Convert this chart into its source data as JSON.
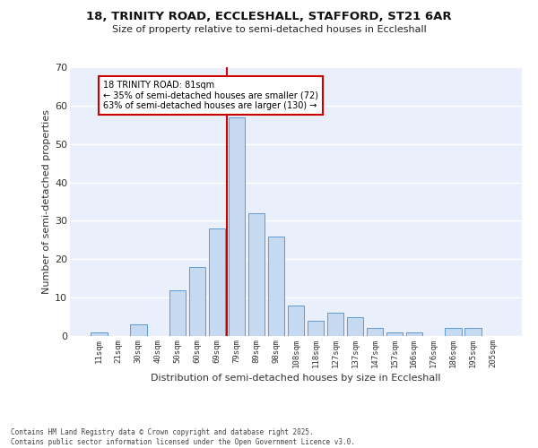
{
  "title1": "18, TRINITY ROAD, ECCLESHALL, STAFFORD, ST21 6AR",
  "title2": "Size of property relative to semi-detached houses in Eccleshall",
  "xlabel": "Distribution of semi-detached houses by size in Eccleshall",
  "ylabel": "Number of semi-detached properties",
  "bar_labels": [
    "11sqm",
    "21sqm",
    "30sqm",
    "40sqm",
    "50sqm",
    "60sqm",
    "69sqm",
    "79sqm",
    "89sqm",
    "98sqm",
    "108sqm",
    "118sqm",
    "127sqm",
    "137sqm",
    "147sqm",
    "157sqm",
    "166sqm",
    "176sqm",
    "186sqm",
    "195sqm",
    "205sqm"
  ],
  "bar_values": [
    1,
    0,
    3,
    0,
    12,
    18,
    28,
    57,
    32,
    26,
    8,
    4,
    6,
    5,
    2,
    1,
    1,
    0,
    2,
    2,
    0
  ],
  "bar_color": "#c5d9f0",
  "bar_edge_color": "#5b9bd5",
  "property_line_idx": 7,
  "property_value": 81,
  "annotation_title": "18 TRINITY ROAD: 81sqm",
  "annotation_line1": "← 35% of semi-detached houses are smaller (72)",
  "annotation_line2": "63% of semi-detached houses are larger (130) →",
  "annotation_box_color": "#ffffff",
  "annotation_box_edge": "#cc0000",
  "line_color": "#cc0000",
  "ylim": [
    0,
    70
  ],
  "yticks": [
    0,
    10,
    20,
    30,
    40,
    50,
    60,
    70
  ],
  "bg_color": "#eaf0fb",
  "footer_line1": "Contains HM Land Registry data © Crown copyright and database right 2025.",
  "footer_line2": "Contains public sector information licensed under the Open Government Licence v3.0."
}
